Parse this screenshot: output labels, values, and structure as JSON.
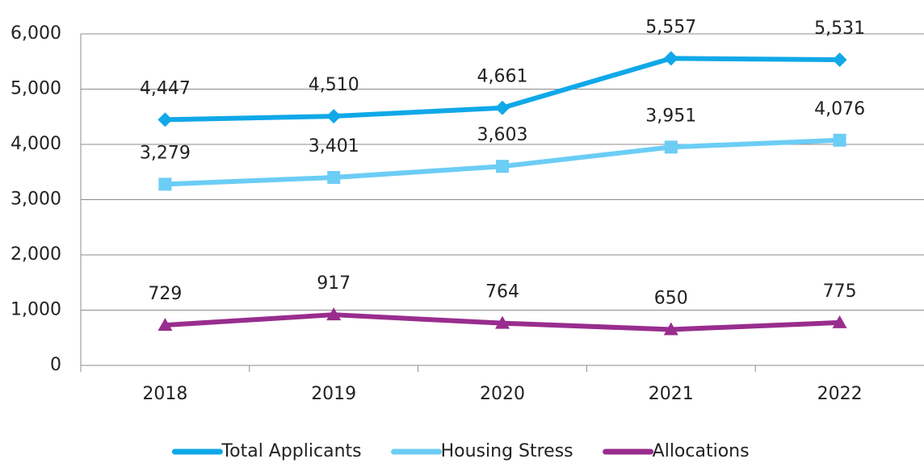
{
  "chart_data": {
    "type": "line",
    "categories": [
      "2018",
      "2019",
      "2020",
      "2021",
      "2022"
    ],
    "series": [
      {
        "name": "Total Applicants",
        "color": "#10a8e8",
        "marker": "diamond",
        "values": [
          4447,
          4510,
          4661,
          5557,
          5531
        ],
        "value_labels": [
          "4,447",
          "4,510",
          "4,661",
          "5,557",
          "5,531"
        ]
      },
      {
        "name": "Housing Stress",
        "color": "#6ccdf5",
        "marker": "square",
        "values": [
          3279,
          3401,
          3603,
          3951,
          4076
        ],
        "value_labels": [
          "3,279",
          "3,401",
          "3,603",
          "3,951",
          "4,076"
        ]
      },
      {
        "name": "Allocations",
        "color": "#982d8e",
        "marker": "triangle",
        "values": [
          729,
          917,
          764,
          650,
          775
        ],
        "value_labels": [
          "729",
          "917",
          "764",
          "650",
          "775"
        ]
      }
    ],
    "ylim": [
      0,
      6000
    ],
    "yticks": [
      0,
      {
        "value": 1000,
        "label": "1,000"
      },
      {
        "value": 2000,
        "label": "2,000"
      },
      {
        "value": 3000,
        "label": "3,000"
      },
      {
        "value": 4000,
        "label": "4,000"
      },
      {
        "value": 5000,
        "label": "5,000"
      },
      {
        "value": 6000,
        "label": "6,000"
      }
    ],
    "grid": true,
    "legend": "bottom"
  }
}
